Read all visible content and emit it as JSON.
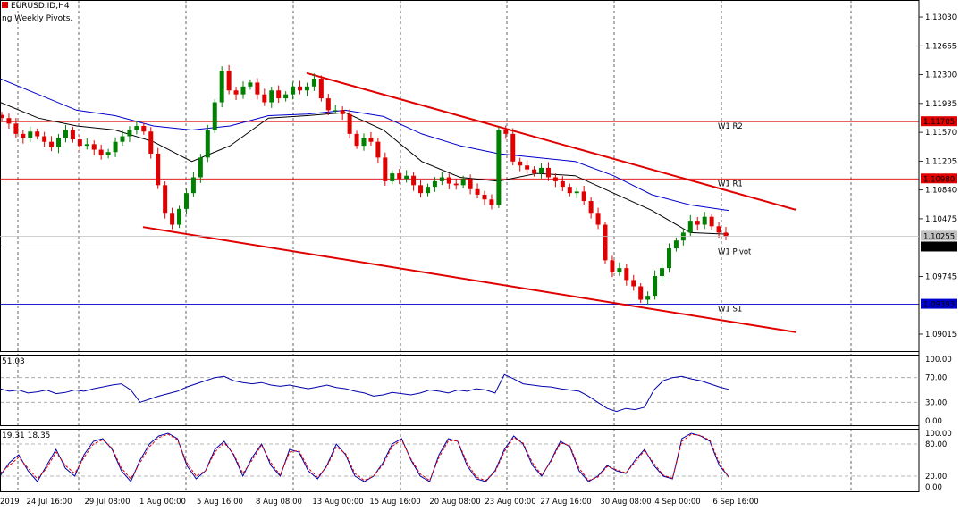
{
  "window": {
    "symbol_label": "EURUSD.ID,H4",
    "indicator_label": "ng Weekly Pivots.",
    "accent_color": "#e00000"
  },
  "chart_data": [
    {
      "type": "candlestick",
      "title": "EURUSD.ID,H4",
      "ylim": [
        1.088,
        1.132
      ],
      "y_ticks": [
        "1.13030",
        "1.12665",
        "1.12300",
        "1.11935",
        "1.11570",
        "1.11205",
        "1.10840",
        "1.10475",
        "1.09745",
        "1.09015"
      ],
      "x_ticks": [
        "2019",
        "24 Jul 16:00",
        "29 Jul 08:00",
        "1 Aug 00:00",
        "5 Aug 16:00",
        "8 Aug 08:00",
        "13 Aug 00:00",
        "15 Aug 16:00",
        "20 Aug 08:00",
        "23 Aug 00:00",
        "27 Aug 16:00",
        "30 Aug 08:00",
        "4 Sep 00:00",
        "6 Sep 16:00"
      ],
      "close_price": {
        "value": 1.10255,
        "label": "1.10255"
      },
      "pivots": [
        {
          "name": "W1 R2",
          "value": 1.11705,
          "label": "1.11705",
          "color": "#e00000"
        },
        {
          "name": "W1 R1",
          "value": 1.1098,
          "label": "1.10980",
          "color": "#e00000"
        },
        {
          "name": "W1 Pivot",
          "value": 1.10118,
          "label": "1.10118",
          "color": "#000000"
        },
        {
          "name": "W1 S1",
          "value": 1.09393,
          "label": "1.09393",
          "color": "#0000cc"
        }
      ],
      "channel": {
        "upper": [
          [
            "13 Aug",
            1.1232
          ],
          [
            "9 Sep",
            1.1059
          ]
        ],
        "lower": [
          [
            "31 Jul",
            1.1037
          ],
          [
            "9 Sep",
            1.0904
          ]
        ],
        "color": "#e00000"
      },
      "moving_averages": [
        {
          "color": "#0000cc",
          "values": [
            1.1225,
            1.1205,
            1.1185,
            1.1178,
            1.1165,
            1.116,
            1.1165,
            1.1178,
            1.118,
            1.1185,
            1.1177,
            1.1155,
            1.114,
            1.113,
            1.1125,
            1.112,
            1.1102,
            1.1078,
            1.1065,
            1.1058
          ]
        },
        {
          "color": "#000000",
          "values": [
            1.1195,
            1.1175,
            1.1165,
            1.116,
            1.1145,
            1.112,
            1.114,
            1.1175,
            1.1178,
            1.1182,
            1.116,
            1.112,
            1.11,
            1.1095,
            1.1105,
            1.1102,
            1.108,
            1.1058,
            1.103,
            1.1028
          ]
        }
      ],
      "candles_close": [
        1.1175,
        1.1168,
        1.1155,
        1.115,
        1.1158,
        1.1152,
        1.1145,
        1.1138,
        1.115,
        1.116,
        1.1148,
        1.114,
        1.1142,
        1.1135,
        1.1128,
        1.1132,
        1.1145,
        1.1152,
        1.116,
        1.1165,
        1.1158,
        1.113,
        1.109,
        1.1055,
        1.104,
        1.106,
        1.108,
        1.11,
        1.1125,
        1.116,
        1.1195,
        1.1235,
        1.121,
        1.1205,
        1.1215,
        1.122,
        1.1205,
        1.1195,
        1.121,
        1.12,
        1.1205,
        1.1215,
        1.121,
        1.1215,
        1.1225,
        1.12,
        1.1185,
        1.1185,
        1.118,
        1.1155,
        1.114,
        1.115,
        1.1145,
        1.1125,
        1.1095,
        1.1105,
        1.1098,
        1.1102,
        1.109,
        1.108,
        1.1088,
        1.1095,
        1.11,
        1.1092,
        1.109,
        1.1098,
        1.1085,
        1.1078,
        1.1072,
        1.1065,
        1.116,
        1.1155,
        1.112,
        1.1115,
        1.111,
        1.1105,
        1.1112,
        1.11,
        1.1095,
        1.1088,
        1.108,
        1.1082,
        1.107,
        1.1055,
        1.104,
        1.0995,
        1.098,
        1.0985,
        1.097,
        1.0962,
        1.0945,
        1.095,
        1.0975,
        1.0985,
        1.101,
        1.102,
        1.103,
        1.1045,
        1.104,
        1.105,
        1.1038,
        1.103,
        1.1025
      ]
    },
    {
      "type": "line",
      "title": "RSI",
      "header_value": "51.03",
      "ylim": [
        0,
        100
      ],
      "y_ticks": [
        "100.00",
        "70.00",
        "30.00",
        "0.00"
      ],
      "levels": [
        70,
        30
      ],
      "series": [
        {
          "color": "#0000aa",
          "values": [
            52,
            48,
            50,
            45,
            47,
            50,
            44,
            46,
            50,
            48,
            52,
            55,
            58,
            60,
            50,
            30,
            35,
            40,
            44,
            48,
            55,
            60,
            65,
            70,
            72,
            65,
            62,
            60,
            62,
            58,
            56,
            58,
            55,
            52,
            55,
            58,
            54,
            52,
            48,
            45,
            40,
            42,
            46,
            44,
            42,
            45,
            50,
            48,
            45,
            50,
            48,
            52,
            50,
            45,
            75,
            68,
            60,
            58,
            56,
            55,
            52,
            50,
            48,
            40,
            30,
            20,
            15,
            20,
            18,
            22,
            50,
            65,
            70,
            72,
            68,
            65,
            60,
            55,
            51
          ]
        }
      ]
    },
    {
      "type": "line",
      "title": "Stochastic",
      "header_value": "19.31 18.35",
      "ylim": [
        0,
        100
      ],
      "y_ticks": [
        "100.00",
        "80.00",
        "20.00",
        "0.00"
      ],
      "levels": [
        80,
        20
      ],
      "series": [
        {
          "color": "#0000aa",
          "values": [
            20,
            45,
            60,
            30,
            10,
            40,
            70,
            35,
            20,
            60,
            85,
            90,
            70,
            30,
            10,
            50,
            80,
            95,
            100,
            90,
            40,
            15,
            30,
            70,
            85,
            60,
            20,
            55,
            80,
            40,
            20,
            70,
            65,
            30,
            15,
            40,
            80,
            60,
            20,
            10,
            20,
            45,
            80,
            90,
            50,
            20,
            10,
            60,
            90,
            85,
            40,
            15,
            10,
            30,
            70,
            95,
            80,
            40,
            20,
            50,
            85,
            75,
            30,
            10,
            20,
            40,
            30,
            25,
            50,
            70,
            40,
            20,
            15,
            90,
            100,
            95,
            85,
            40,
            19
          ]
        },
        {
          "color": "#e00000",
          "values": [
            25,
            40,
            55,
            35,
            15,
            35,
            65,
            40,
            25,
            55,
            80,
            88,
            72,
            35,
            15,
            45,
            75,
            92,
            98,
            88,
            45,
            20,
            30,
            65,
            82,
            62,
            25,
            50,
            78,
            45,
            22,
            65,
            68,
            35,
            18,
            38,
            75,
            62,
            25,
            12,
            20,
            42,
            76,
            88,
            52,
            24,
            12,
            55,
            86,
            86,
            45,
            18,
            12,
            28,
            66,
            92,
            82,
            45,
            22,
            48,
            82,
            77,
            35,
            12,
            18,
            38,
            32,
            26,
            46,
            68,
            44,
            22,
            16,
            85,
            98,
            96,
            87,
            45,
            18
          ]
        }
      ]
    }
  ]
}
